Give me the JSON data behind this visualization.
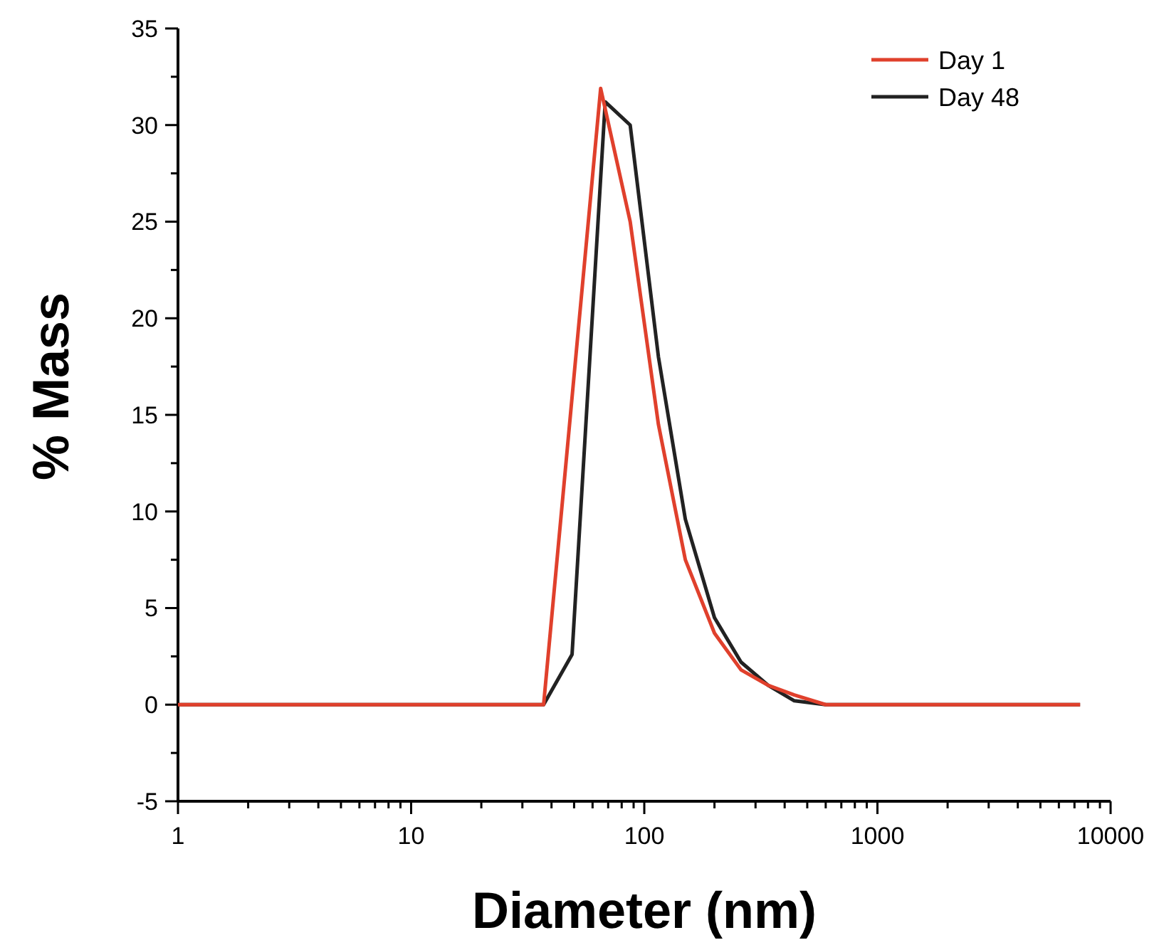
{
  "chart_data": {
    "type": "line",
    "xlabel": "Diameter (nm)",
    "ylabel": "% Mass",
    "log": "x",
    "xlim": [
      1,
      10000
    ],
    "ylim": [
      -5,
      35
    ],
    "xticks": [
      1,
      {
        "value": 2,
        "label": null
      },
      {
        "value": 3,
        "label": null
      },
      {
        "value": 4,
        "label": null
      },
      {
        "value": 5,
        "label": null
      },
      {
        "value": 6,
        "label": null
      },
      {
        "value": 7,
        "label": null
      },
      {
        "value": 8,
        "label": null
      },
      {
        "value": 9,
        "label": null
      },
      10,
      {
        "value": 20,
        "label": null
      },
      {
        "value": 30,
        "label": null
      },
      {
        "value": 40,
        "label": null
      },
      {
        "value": 50,
        "label": null
      },
      {
        "value": 60,
        "label": null
      },
      {
        "value": 70,
        "label": null
      },
      {
        "value": 80,
        "label": null
      },
      {
        "value": 90,
        "label": null
      },
      100,
      {
        "value": 200,
        "label": null
      },
      {
        "value": 300,
        "label": null
      },
      {
        "value": 400,
        "label": null
      },
      {
        "value": 500,
        "label": null
      },
      {
        "value": 600,
        "label": null
      },
      {
        "value": 700,
        "label": null
      },
      {
        "value": 800,
        "label": null
      },
      {
        "value": 900,
        "label": null
      },
      1000,
      {
        "value": 2000,
        "label": null
      },
      {
        "value": 3000,
        "label": null
      },
      {
        "value": 4000,
        "label": null
      },
      {
        "value": 5000,
        "label": null
      },
      {
        "value": 6000,
        "label": null
      },
      {
        "value": 7000,
        "label": null
      },
      {
        "value": 8000,
        "label": null
      },
      {
        "value": 9000,
        "label": null
      },
      10000
    ],
    "yticks": [
      -5,
      {
        "value": -2.5,
        "label": null
      },
      0,
      {
        "value": 2.5,
        "label": null
      },
      5,
      {
        "value": 7.5,
        "label": null
      },
      10,
      {
        "value": 12.5,
        "label": null
      },
      15,
      {
        "value": 17.5,
        "label": null
      },
      20,
      {
        "value": 22.5,
        "label": null
      },
      25,
      {
        "value": 27.5,
        "label": null
      },
      30,
      {
        "value": 32.5,
        "label": null
      },
      35
    ],
    "legend": "top right",
    "marker": "none",
    "line_style": "solid",
    "series": [
      {
        "name": "Day 1",
        "color": "#e0402c",
        "x": [
          1,
          37,
          65,
          87,
          115,
          150,
          200,
          260,
          340,
          440,
          600,
          7400
        ],
        "values": [
          0,
          0,
          31.9,
          25,
          14.5,
          7.5,
          3.7,
          1.8,
          1,
          0.5,
          0,
          0
        ]
      },
      {
        "name": "Day 48",
        "color": "#222222",
        "x": [
          1,
          37,
          49,
          68,
          87,
          115,
          150,
          200,
          260,
          340,
          440,
          600,
          7400
        ],
        "values": [
          0,
          0,
          2.6,
          31.2,
          30,
          18,
          9.6,
          4.5,
          2.2,
          1,
          0.2,
          0,
          0
        ]
      }
    ]
  }
}
